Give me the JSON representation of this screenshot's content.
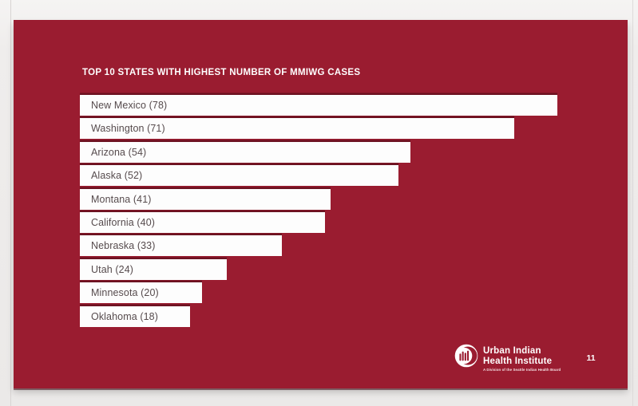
{
  "page": {
    "page_number": "11"
  },
  "slide": {
    "title": "TOP 10 STATES WITH HIGHEST NUMBER OF MMIWG CASES"
  },
  "chart_data": {
    "type": "bar",
    "orientation": "horizontal",
    "title": "TOP 10 STATES WITH HIGHEST NUMBER OF MMIWG CASES",
    "categories": [
      "New Mexico",
      "Washington",
      "Arizona",
      "Alaska",
      "Montana",
      "California",
      "Nebraska",
      "Utah",
      "Minnesota",
      "Oklahoma"
    ],
    "values": [
      78,
      71,
      54,
      52,
      41,
      40,
      33,
      24,
      20,
      18
    ],
    "labels": [
      "New Mexico (78)",
      "Washington (71)",
      "Arizona (54)",
      "Alaska (52)",
      "Montana (41)",
      "California (40)",
      "Nebraska (33)",
      "Utah (24)",
      "Minnesota (20)",
      "Oklahoma (18)"
    ],
    "xlim": [
      0,
      78
    ],
    "grid": false,
    "legend": false,
    "bar_color": "#fdfdfd",
    "label_color": "#564b4d",
    "background_color": "#9a1c30",
    "title_color": "#ffffff"
  },
  "footer": {
    "org_name_line1": "Urban Indian",
    "org_name_line2": "Health Institute",
    "tagline": "A Division of the Seattle Indian Health Board"
  },
  "colors": {
    "slide_background": "#9a1c30",
    "page_margin": "#efedec",
    "bar_fill": "#fdfdfd",
    "bar_label_text": "#564b4d",
    "title_text": "#ffffff"
  }
}
